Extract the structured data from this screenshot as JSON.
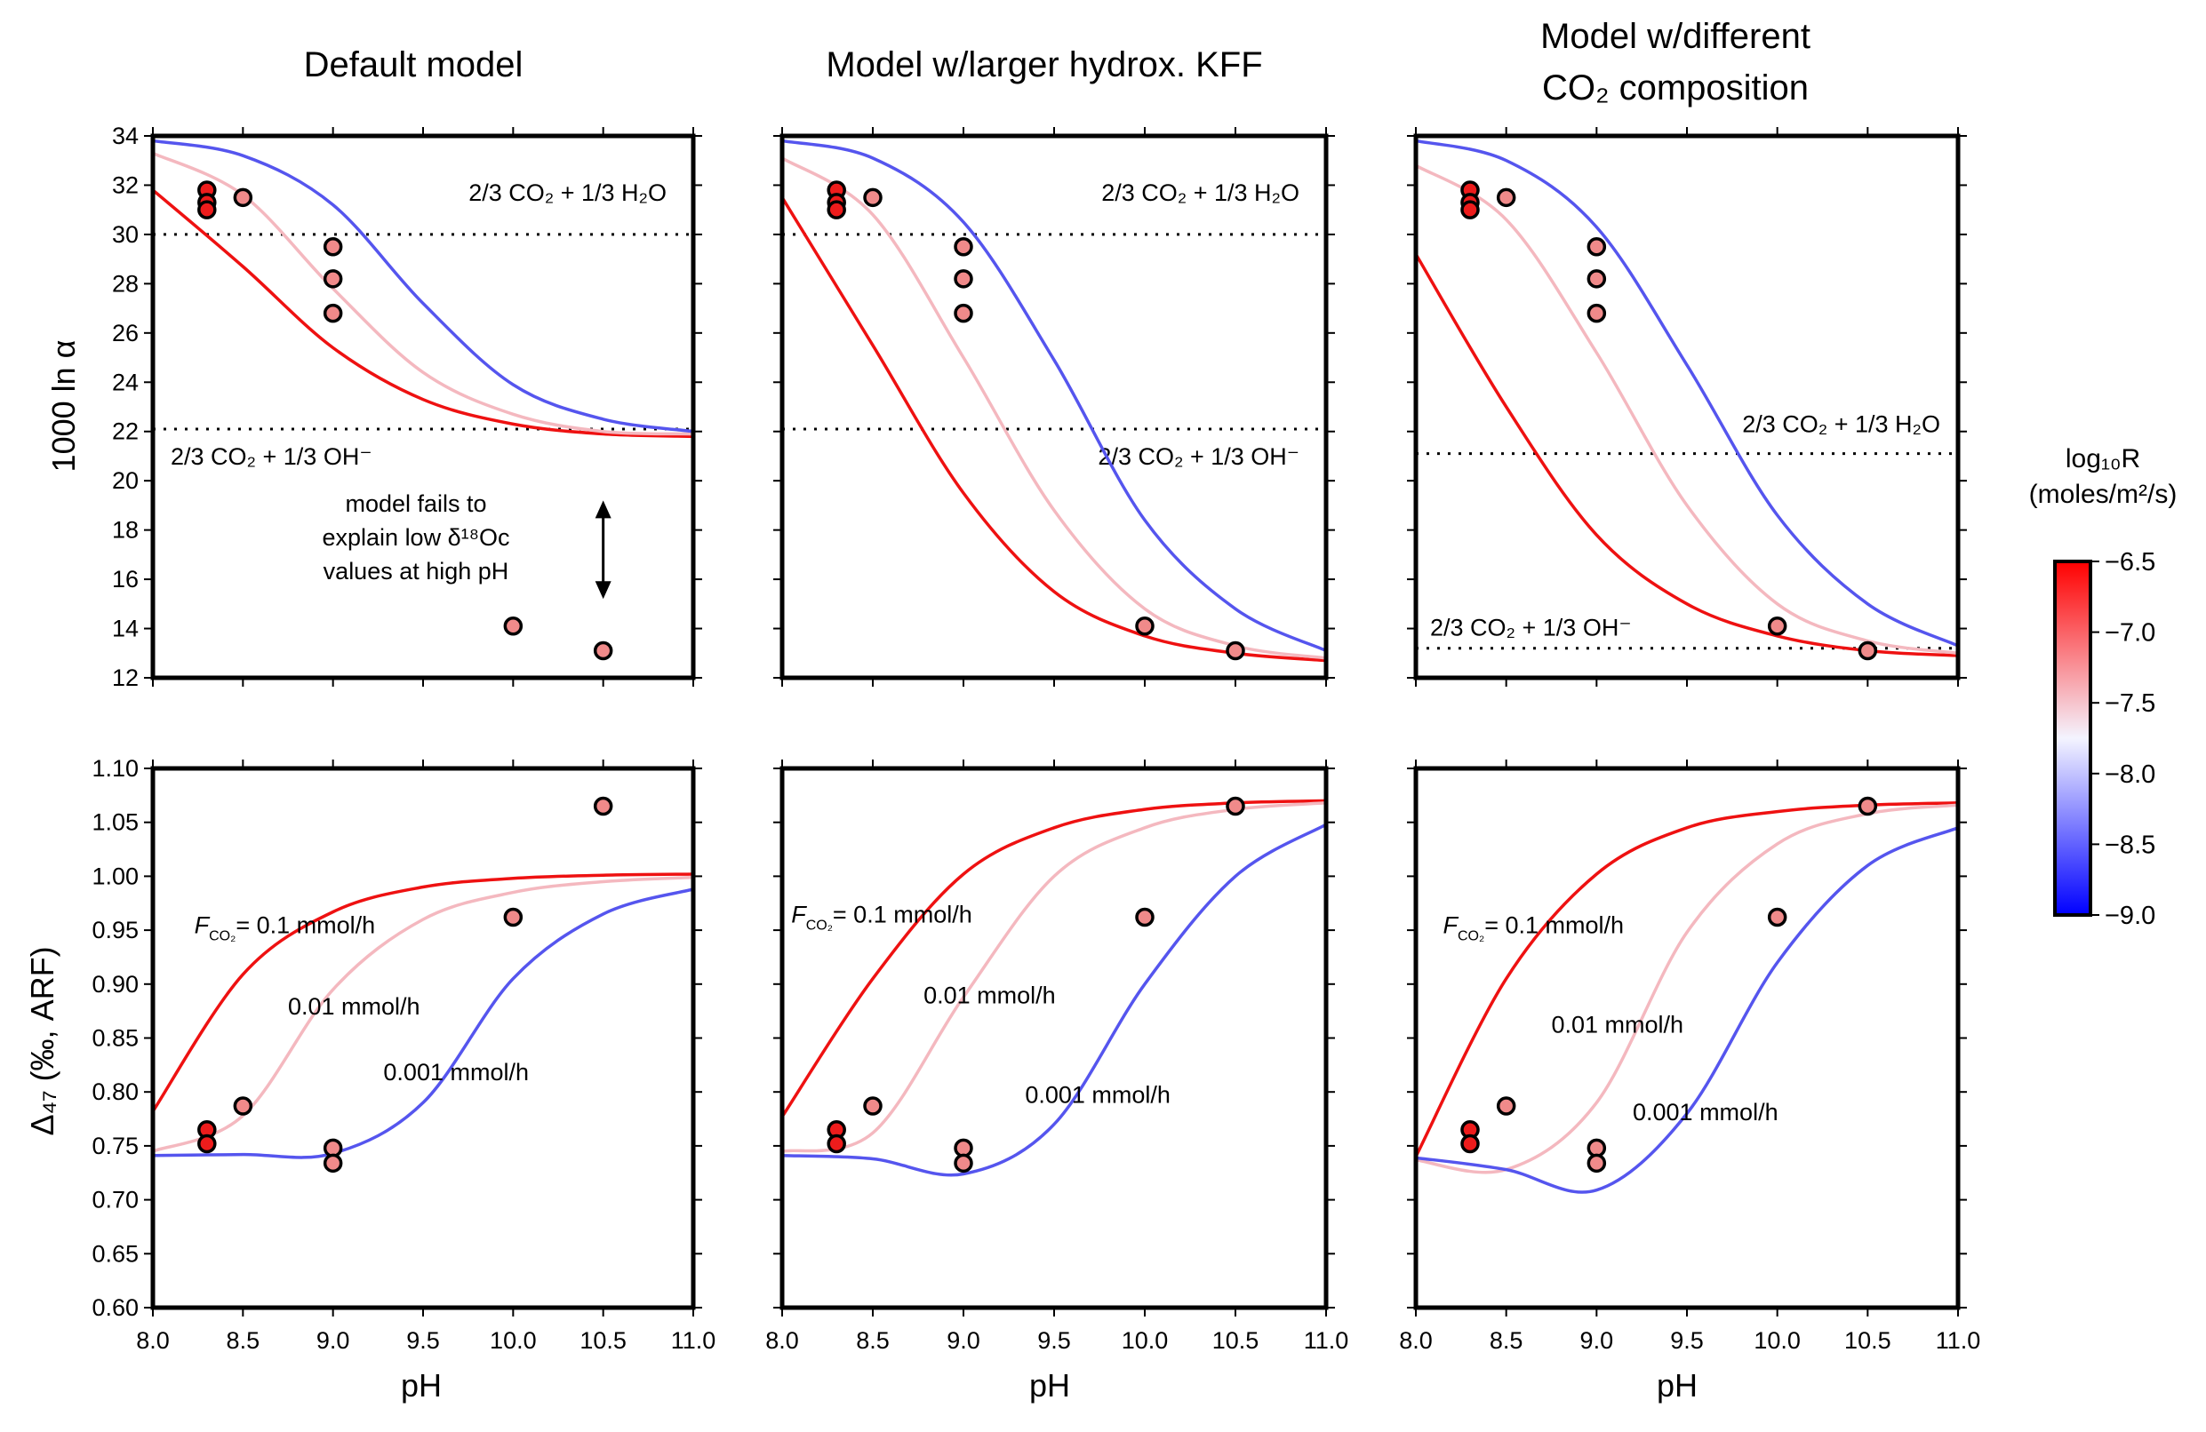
{
  "figure": {
    "column_titles": [
      [
        "Default model"
      ],
      [
        "Model w/larger hydrox. KFF"
      ],
      [
        "Model w/different",
        "CO₂ composition"
      ]
    ],
    "xlabel": "pH",
    "ylabel_top": "1000 ln α",
    "ylabel_bottom": "Δ₄₇ (‰, ARF)",
    "x_ticks": [
      "8.0",
      "8.5",
      "9.0",
      "9.5",
      "10.0",
      "10.5",
      "11.0"
    ],
    "y_ticks_top": [
      "12",
      "14",
      "16",
      "18",
      "20",
      "22",
      "24",
      "26",
      "28",
      "30",
      "32",
      "34"
    ],
    "y_ticks_bottom": [
      "0.60",
      "0.65",
      "0.70",
      "0.75",
      "0.80",
      "0.85",
      "0.90",
      "0.95",
      "1.00",
      "1.05",
      "1.10"
    ],
    "colorbar": {
      "label_line1": "log₁₀R",
      "label_line2": "(moles/m²/s)",
      "ticks": [
        "−6.5",
        "−7.0",
        "−7.5",
        "−8.0",
        "−8.5",
        "−9.0"
      ],
      "range": [
        -9.0,
        -6.5
      ],
      "colors": {
        "low": "#0000ff",
        "mid": "#f4f4ff",
        "high": "#ff0000"
      }
    },
    "series_colors": {
      "red": "#ee1111",
      "pink": "#f4b8bf",
      "blue": "#5555ee"
    }
  },
  "chart_data": [
    {
      "type": "line",
      "title": "Default model",
      "xlabel": "",
      "ylabel": "1000 ln α",
      "xlim": [
        8.0,
        11.0
      ],
      "ylim": [
        12,
        34
      ],
      "ref_lines": [
        {
          "y": 30.0,
          "label": "2/3 CO₂ + 1/3 H₂O"
        },
        {
          "y": 22.1,
          "label": "2/3 CO₂ + 1/3 OH⁻"
        }
      ],
      "annotation": [
        "model fails to",
        "explain low δ¹⁸Oc",
        "values at high pH"
      ],
      "arrow": {
        "x": 10.5,
        "y_from": 19.2,
        "y_to": 15.2
      },
      "series": [
        {
          "color": "red",
          "x": [
            8.0,
            8.5,
            9.0,
            9.5,
            10.0,
            10.5,
            11.0
          ],
          "y": [
            31.8,
            28.7,
            25.4,
            23.3,
            22.3,
            21.9,
            21.8
          ]
        },
        {
          "color": "pink",
          "x": [
            8.0,
            8.5,
            9.0,
            9.5,
            10.0,
            10.5,
            11.0
          ],
          "y": [
            33.3,
            31.6,
            27.8,
            24.4,
            22.7,
            22.0,
            21.9
          ]
        },
        {
          "color": "blue",
          "x": [
            8.0,
            8.5,
            9.0,
            9.5,
            10.0,
            10.5,
            11.0
          ],
          "y": [
            33.8,
            33.2,
            31.2,
            27.2,
            23.9,
            22.5,
            22.0
          ]
        }
      ],
      "points": [
        {
          "x": 8.3,
          "y": 31.8,
          "shade": "dark"
        },
        {
          "x": 8.3,
          "y": 31.3,
          "shade": "dark"
        },
        {
          "x": 8.3,
          "y": 31.0,
          "shade": "dark"
        },
        {
          "x": 8.5,
          "y": 31.5,
          "shade": "light"
        },
        {
          "x": 9.0,
          "y": 29.5,
          "shade": "light"
        },
        {
          "x": 9.0,
          "y": 28.2,
          "shade": "light"
        },
        {
          "x": 9.0,
          "y": 26.8,
          "shade": "light"
        },
        {
          "x": 10.0,
          "y": 14.1,
          "shade": "light"
        },
        {
          "x": 10.5,
          "y": 13.1,
          "shade": "light"
        }
      ]
    },
    {
      "type": "line",
      "title": "Model w/larger hydrox. KFF",
      "xlabel": "",
      "ylabel": "",
      "xlim": [
        8.0,
        11.0
      ],
      "ylim": [
        12,
        34
      ],
      "ref_lines": [
        {
          "y": 30.0,
          "label": "2/3 CO₂ + 1/3 H₂O"
        },
        {
          "y": 22.1,
          "label": "2/3 CO₂ + 1/3 OH⁻"
        }
      ],
      "series": [
        {
          "color": "red",
          "x": [
            8.0,
            8.5,
            9.0,
            9.5,
            10.0,
            10.5,
            11.0
          ],
          "y": [
            31.5,
            25.5,
            19.5,
            15.5,
            13.7,
            13.0,
            12.7
          ]
        },
        {
          "color": "pink",
          "x": [
            8.0,
            8.5,
            9.0,
            9.5,
            10.0,
            10.5,
            11.0
          ],
          "y": [
            33.1,
            30.8,
            25.0,
            18.8,
            14.8,
            13.3,
            12.8
          ]
        },
        {
          "color": "blue",
          "x": [
            8.0,
            8.5,
            9.0,
            9.5,
            10.0,
            10.5,
            11.0
          ],
          "y": [
            33.8,
            33.1,
            30.5,
            24.9,
            18.4,
            14.8,
            13.1
          ]
        }
      ],
      "points": [
        {
          "x": 8.3,
          "y": 31.8,
          "shade": "dark"
        },
        {
          "x": 8.3,
          "y": 31.3,
          "shade": "dark"
        },
        {
          "x": 8.3,
          "y": 31.0,
          "shade": "dark"
        },
        {
          "x": 8.5,
          "y": 31.5,
          "shade": "light"
        },
        {
          "x": 9.0,
          "y": 29.5,
          "shade": "light"
        },
        {
          "x": 9.0,
          "y": 28.2,
          "shade": "light"
        },
        {
          "x": 9.0,
          "y": 26.8,
          "shade": "light"
        },
        {
          "x": 10.0,
          "y": 14.1,
          "shade": "light"
        },
        {
          "x": 10.5,
          "y": 13.1,
          "shade": "light"
        }
      ]
    },
    {
      "type": "line",
      "title": "Model w/different CO₂ composition",
      "xlabel": "",
      "ylabel": "",
      "xlim": [
        8.0,
        11.0
      ],
      "ylim": [
        12,
        34
      ],
      "ref_lines": [
        {
          "y": 21.1,
          "label": "2/3 CO₂ + 1/3 H₂O"
        },
        {
          "y": 13.2,
          "label": "2/3 CO₂ + 1/3 OH⁻"
        }
      ],
      "series": [
        {
          "color": "red",
          "x": [
            8.0,
            8.5,
            9.0,
            9.5,
            10.0,
            10.5,
            11.0
          ],
          "y": [
            29.2,
            23.0,
            17.8,
            15.0,
            13.7,
            13.1,
            12.9
          ]
        },
        {
          "color": "pink",
          "x": [
            8.0,
            8.5,
            9.0,
            9.5,
            10.0,
            10.5,
            11.0
          ],
          "y": [
            32.8,
            30.6,
            25.2,
            19.0,
            15.0,
            13.5,
            13.0
          ]
        },
        {
          "color": "blue",
          "x": [
            8.0,
            8.5,
            9.0,
            9.5,
            10.0,
            10.5,
            11.0
          ],
          "y": [
            33.8,
            33.0,
            30.3,
            24.7,
            18.6,
            15.0,
            13.3
          ]
        }
      ],
      "points": [
        {
          "x": 8.3,
          "y": 31.8,
          "shade": "dark"
        },
        {
          "x": 8.3,
          "y": 31.3,
          "shade": "dark"
        },
        {
          "x": 8.3,
          "y": 31.0,
          "shade": "dark"
        },
        {
          "x": 8.5,
          "y": 31.5,
          "shade": "light"
        },
        {
          "x": 9.0,
          "y": 29.5,
          "shade": "light"
        },
        {
          "x": 9.0,
          "y": 28.2,
          "shade": "light"
        },
        {
          "x": 9.0,
          "y": 26.8,
          "shade": "light"
        },
        {
          "x": 10.0,
          "y": 14.1,
          "shade": "light"
        },
        {
          "x": 10.5,
          "y": 13.1,
          "shade": "light"
        }
      ]
    },
    {
      "type": "line",
      "title": "",
      "xlabel": "pH",
      "ylabel": "Δ₄₇ (‰, ARF)",
      "xlim": [
        8.0,
        11.0
      ],
      "ylim": [
        0.6,
        1.1
      ],
      "labels": [
        {
          "text": "= 0.1 mmol/h",
          "sub": "F",
          "subscript": "CO₂",
          "x": 8.23,
          "y": 0.947
        },
        {
          "text": "0.01 mmol/h",
          "x": 8.75,
          "y": 0.872
        },
        {
          "text": "0.001 mmol/h",
          "x": 9.28,
          "y": 0.811
        }
      ],
      "series": [
        {
          "color": "red",
          "x": [
            8.0,
            8.5,
            9.0,
            9.5,
            10.0,
            10.5,
            11.0
          ],
          "y": [
            0.782,
            0.909,
            0.967,
            0.99,
            0.998,
            1.001,
            1.002
          ]
        },
        {
          "color": "pink",
          "x": [
            8.0,
            8.5,
            9.0,
            9.5,
            10.0,
            10.5,
            11.0
          ],
          "y": [
            0.745,
            0.778,
            0.895,
            0.96,
            0.985,
            0.995,
            0.999
          ]
        },
        {
          "color": "blue",
          "x": [
            8.0,
            8.5,
            9.0,
            9.5,
            10.0,
            10.5,
            11.0
          ],
          "y": [
            0.741,
            0.742,
            0.743,
            0.79,
            0.905,
            0.965,
            0.988
          ]
        }
      ],
      "points": [
        {
          "x": 8.3,
          "y": 0.765,
          "shade": "dark"
        },
        {
          "x": 8.3,
          "y": 0.752,
          "shade": "dark"
        },
        {
          "x": 8.5,
          "y": 0.787,
          "shade": "light"
        },
        {
          "x": 9.0,
          "y": 0.748,
          "shade": "light"
        },
        {
          "x": 9.0,
          "y": 0.734,
          "shade": "light"
        },
        {
          "x": 10.0,
          "y": 0.962,
          "shade": "light"
        },
        {
          "x": 10.5,
          "y": 1.065,
          "shade": "light"
        }
      ]
    },
    {
      "type": "line",
      "title": "",
      "xlabel": "pH",
      "ylabel": "",
      "xlim": [
        8.0,
        11.0
      ],
      "ylim": [
        0.6,
        1.1
      ],
      "labels": [
        {
          "text": "= 0.1 mmol/h",
          "sub": "F",
          "subscript": "CO₂",
          "x": 8.05,
          "y": 0.957
        },
        {
          "text": "0.01 mmol/h",
          "x": 8.78,
          "y": 0.882
        },
        {
          "text": "0.001 mmol/h",
          "x": 9.34,
          "y": 0.79
        }
      ],
      "series": [
        {
          "color": "red",
          "x": [
            8.0,
            8.5,
            9.0,
            9.5,
            10.0,
            10.5,
            11.0
          ],
          "y": [
            0.777,
            0.905,
            1.002,
            1.045,
            1.062,
            1.068,
            1.07
          ]
        },
        {
          "color": "pink",
          "x": [
            8.0,
            8.5,
            9.0,
            9.5,
            10.0,
            10.5,
            11.0
          ],
          "y": [
            0.745,
            0.762,
            0.888,
            1.0,
            1.045,
            1.062,
            1.068
          ]
        },
        {
          "color": "blue",
          "x": [
            8.0,
            8.5,
            9.0,
            9.5,
            10.0,
            10.5,
            11.0
          ],
          "y": [
            0.741,
            0.738,
            0.724,
            0.77,
            0.9,
            1.0,
            1.048
          ]
        }
      ],
      "points": [
        {
          "x": 8.3,
          "y": 0.765,
          "shade": "dark"
        },
        {
          "x": 8.3,
          "y": 0.752,
          "shade": "dark"
        },
        {
          "x": 8.5,
          "y": 0.787,
          "shade": "light"
        },
        {
          "x": 9.0,
          "y": 0.748,
          "shade": "light"
        },
        {
          "x": 9.0,
          "y": 0.734,
          "shade": "light"
        },
        {
          "x": 10.0,
          "y": 0.962,
          "shade": "light"
        },
        {
          "x": 10.5,
          "y": 1.065,
          "shade": "light"
        }
      ]
    },
    {
      "type": "line",
      "title": "",
      "xlabel": "pH",
      "ylabel": "",
      "xlim": [
        8.0,
        11.0
      ],
      "ylim": [
        0.6,
        1.1
      ],
      "labels": [
        {
          "text": "= 0.1 mmol/h",
          "sub": "F",
          "subscript": "CO₂",
          "x": 8.15,
          "y": 0.947
        },
        {
          "text": "0.01 mmol/h",
          "x": 8.75,
          "y": 0.855
        },
        {
          "text": "0.001 mmol/h",
          "x": 9.2,
          "y": 0.774
        }
      ],
      "series": [
        {
          "color": "red",
          "x": [
            8.0,
            8.5,
            9.0,
            9.5,
            10.0,
            10.5,
            11.0
          ],
          "y": [
            0.74,
            0.905,
            1.002,
            1.045,
            1.06,
            1.066,
            1.068
          ]
        },
        {
          "color": "pink",
          "x": [
            8.0,
            8.5,
            9.0,
            9.5,
            10.0,
            10.5,
            11.0
          ],
          "y": [
            0.737,
            0.728,
            0.79,
            0.948,
            1.03,
            1.058,
            1.066
          ]
        },
        {
          "color": "blue",
          "x": [
            8.0,
            8.5,
            9.0,
            9.5,
            10.0,
            10.5,
            11.0
          ],
          "y": [
            0.739,
            0.728,
            0.709,
            0.78,
            0.92,
            1.01,
            1.045
          ]
        }
      ],
      "points": [
        {
          "x": 8.3,
          "y": 0.765,
          "shade": "dark"
        },
        {
          "x": 8.3,
          "y": 0.752,
          "shade": "dark"
        },
        {
          "x": 8.5,
          "y": 0.787,
          "shade": "light"
        },
        {
          "x": 9.0,
          "y": 0.748,
          "shade": "light"
        },
        {
          "x": 9.0,
          "y": 0.734,
          "shade": "light"
        },
        {
          "x": 10.0,
          "y": 0.962,
          "shade": "light"
        },
        {
          "x": 10.5,
          "y": 1.065,
          "shade": "light"
        }
      ]
    }
  ]
}
